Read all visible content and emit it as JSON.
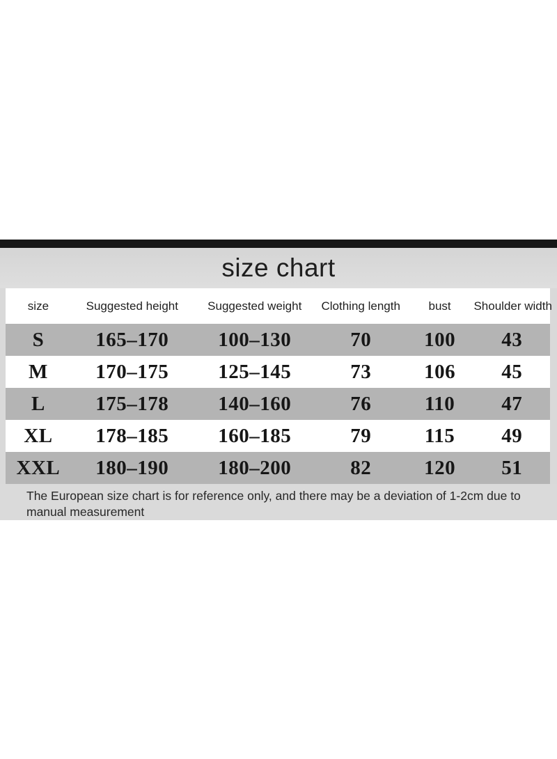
{
  "title": "size chart",
  "colors": {
    "divider_bar": "#161616",
    "band_gray": "#d9d9d9",
    "stripe_row_gray": "#b4b4b4",
    "text": "#1e1e1e"
  },
  "chart_data": {
    "type": "table",
    "title": "size chart",
    "columns": [
      "size",
      "Suggested height",
      "Suggested weight",
      "Clothing length",
      "bust",
      "Shoulder width"
    ],
    "rows": [
      [
        "S",
        "165–170",
        "100–130",
        "70",
        "100",
        "43"
      ],
      [
        "M",
        "170–175",
        "125–145",
        "73",
        "106",
        "45"
      ],
      [
        "L",
        "175–178",
        "140–160",
        "76",
        "110",
        "47"
      ],
      [
        "XL",
        "178–185",
        "160–185",
        "79",
        "115",
        "49"
      ],
      [
        "XXL",
        "180–190",
        "180–200",
        "82",
        "120",
        "51"
      ]
    ],
    "note": "The European size chart is for reference only, and there may be a deviation of 1-2cm due to manual measurement",
    "layout_hints": {
      "striped_rows": [
        0,
        2,
        4
      ],
      "header_background": "#ffffff",
      "stripe_background": "#b4b4b4",
      "title_position": "top-center"
    }
  }
}
